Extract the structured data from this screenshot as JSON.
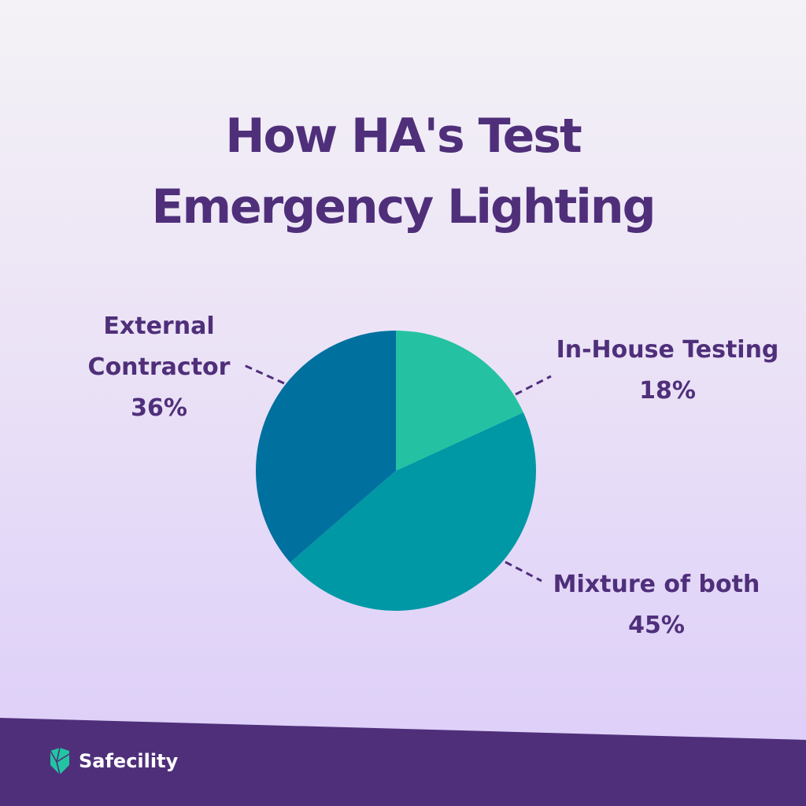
{
  "brand": {
    "name": "Safecility",
    "logo_icon": "shield-facet-icon",
    "logo_color": "#23c4a2"
  },
  "colors": {
    "title": "#4f2f7a",
    "footer": "#4f2f7a"
  },
  "chart_data": {
    "type": "pie",
    "title_lines": [
      "How HA's Test",
      "Emergency Lighting"
    ],
    "start_angle_deg": 0,
    "direction": "clockwise",
    "slices": [
      {
        "label_lines": [
          "In-House Testing"
        ],
        "value": 18,
        "value_text": "18%",
        "color": "#24c2a2"
      },
      {
        "label_lines": [
          "Mixture of both"
        ],
        "value": 45,
        "value_text": "45%",
        "color": "#0098a5"
      },
      {
        "label_lines": [
          "External",
          "Contractor"
        ],
        "value": 36,
        "value_text": "36%",
        "color": "#00709f"
      }
    ]
  }
}
